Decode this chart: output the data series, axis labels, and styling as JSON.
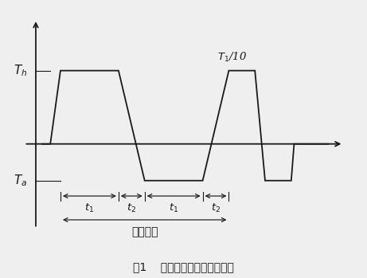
{
  "title": "图1    温度冲击试验温度变化图",
  "label_Th": "$T_h$",
  "label_Ta": "$T_a$",
  "label_t1": "$t_1$",
  "label_t2": "$t_2$",
  "label_T110": "$T_1$/10",
  "label_cycle": "一个循环",
  "line_color": "#1a1a1a",
  "bg_color": "#efefef",
  "figsize": [
    4.61,
    3.49
  ],
  "dpi": 100,
  "Thv": 2.0,
  "Tav": -1.0,
  "axv": 0.0,
  "dt_trans": 0.35,
  "t1_dur": 2.0,
  "t2_dur": 0.9,
  "x_start": 0.5,
  "xlim": [
    -0.6,
    11.0
  ],
  "ylim": [
    -2.8,
    3.6
  ]
}
